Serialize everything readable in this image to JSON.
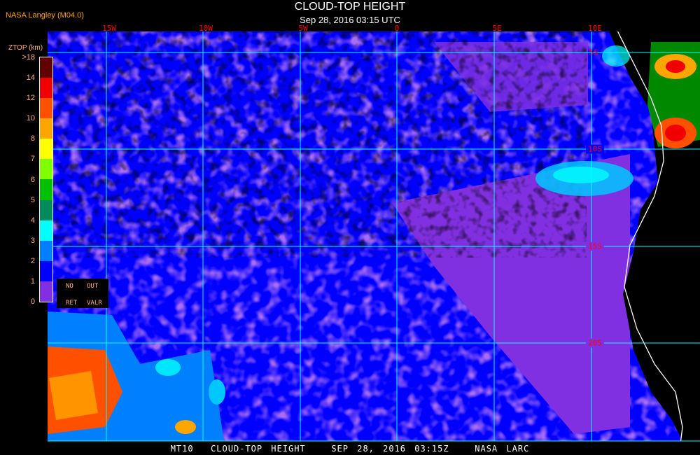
{
  "header": {
    "title": "CLOUD-TOP HEIGHT",
    "subtitle": "Sep 28, 2016 03:15 UTC",
    "org": "NASA Langley (M04.0)"
  },
  "map": {
    "longitude_labels": [
      "15W",
      "10W",
      "5W",
      "0",
      "5E",
      "10E"
    ],
    "latitude_labels": [
      "5S",
      "10S",
      "15S",
      "20S"
    ],
    "grid_color": "#00ffff",
    "coastline_color": "#ffffff",
    "ocean_background_color": "#0000ff"
  },
  "legend": {
    "title": "ZTOP (km)",
    "tick_labels": [
      ">18",
      "14",
      "12",
      "10",
      "8",
      "7",
      "6",
      "5",
      "4",
      "3",
      "2",
      "1",
      "0"
    ],
    "colors": [
      "#600000",
      "#f00000",
      "#ff5000",
      "#ffa500",
      "#ffff00",
      "#80ff00",
      "#00c000",
      "#008c5a",
      "#00ffff",
      "#0080ff",
      "#0000ff",
      "#8030e0"
    ],
    "no_ret": [
      "NO",
      "RET"
    ],
    "out_valr": [
      "OUT",
      "VALR"
    ]
  },
  "footer": {
    "caption": "MT10  CLOUD-TOP HEIGHT   SEP 28, 2016 03:15Z   NASA LARC"
  }
}
